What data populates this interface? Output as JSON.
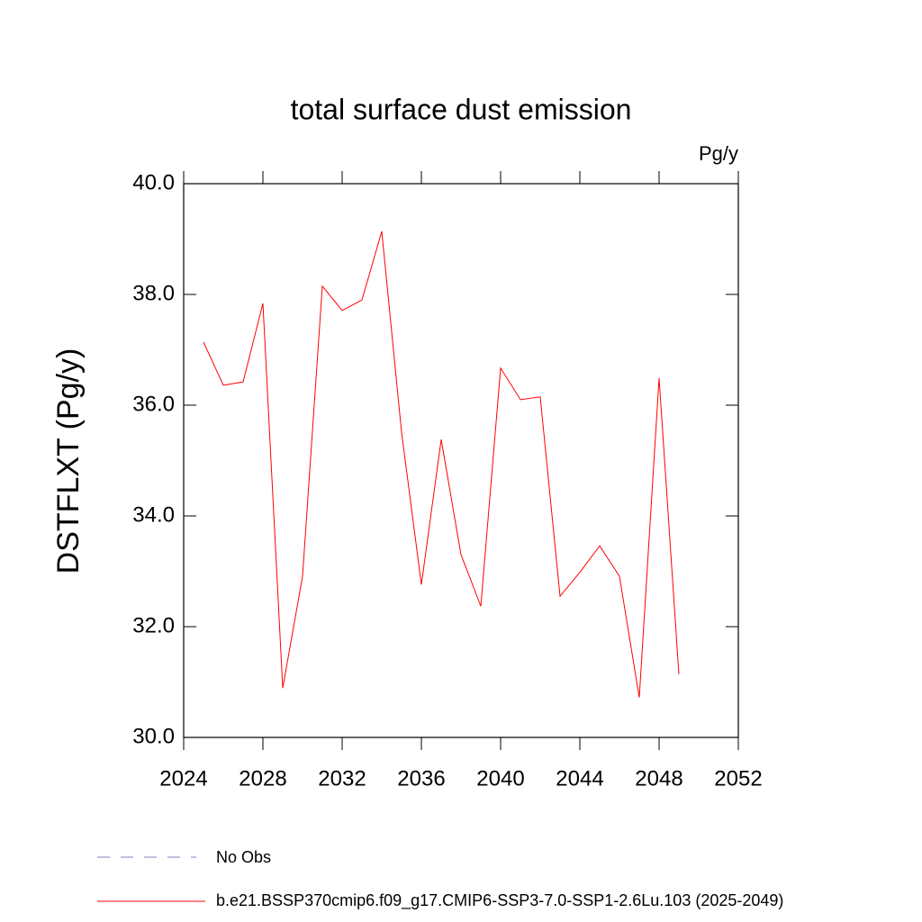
{
  "chart_data": {
    "type": "line",
    "title": "total surface dust emission",
    "units": "Pg/y",
    "ylabel": "DSTFLXT  (Pg/y)",
    "x": [
      2025,
      2026,
      2027,
      2028,
      2029,
      2030,
      2031,
      2032,
      2033,
      2034,
      2035,
      2036,
      2037,
      2038,
      2039,
      2040,
      2041,
      2042,
      2043,
      2044,
      2045,
      2046,
      2047,
      2048,
      2049
    ],
    "series": [
      {
        "name": "b.e21.BSSP370cmip6.f09_g17.CMIP6-SSP3-7.0-SSP1-2.6Lu.103 (2025-2049)",
        "color": "#ff0000",
        "values": [
          37.14,
          36.36,
          36.42,
          37.84,
          30.89,
          32.91,
          38.15,
          37.71,
          37.9,
          39.14,
          35.51,
          32.76,
          35.38,
          33.3,
          32.37,
          36.67,
          36.1,
          36.15,
          32.55,
          32.98,
          33.46,
          32.91,
          30.72,
          36.49,
          31.14
        ]
      }
    ],
    "no_obs_label": "No Obs",
    "no_obs_color": "#8080c0",
    "xlim": [
      2024,
      2052
    ],
    "xticks": [
      2024,
      2028,
      2032,
      2036,
      2040,
      2044,
      2048,
      2052
    ],
    "ylim": [
      30,
      40
    ],
    "yticks": [
      {
        "value": 30,
        "label": "30.0"
      },
      {
        "value": 32,
        "label": "32.0"
      },
      {
        "value": 34,
        "label": "34.0"
      },
      {
        "value": 36,
        "label": "36.0"
      },
      {
        "value": 38,
        "label": "38.0"
      },
      {
        "value": 40,
        "label": "40.0"
      }
    ]
  }
}
